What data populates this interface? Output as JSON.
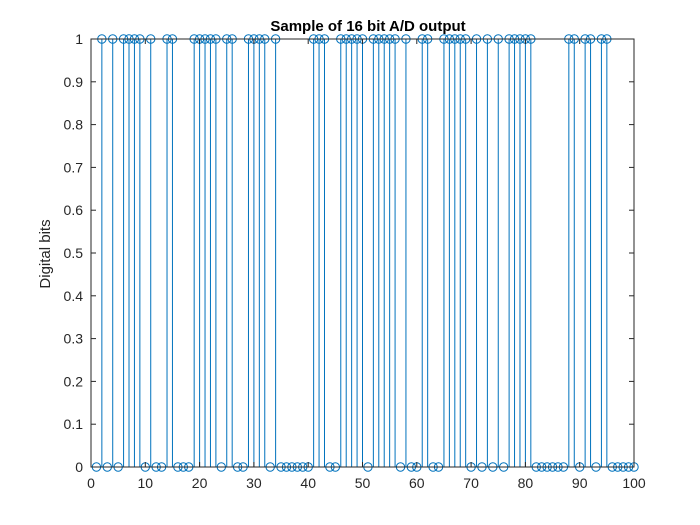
{
  "chart_data": {
    "type": "stem",
    "title": "Sample of 16 bit A/D output",
    "xlabel": "",
    "ylabel": "Digital bits",
    "xlim": [
      0,
      100
    ],
    "ylim": [
      0,
      1
    ],
    "xticks": [
      "0",
      "10",
      "20",
      "30",
      "40",
      "50",
      "60",
      "70",
      "80",
      "90",
      "100"
    ],
    "yticks": [
      "0",
      "0.1",
      "0.2",
      "0.3",
      "0.4",
      "0.5",
      "0.6",
      "0.7",
      "0.8",
      "0.9",
      "1"
    ],
    "grid": false,
    "color": "#0072BD",
    "x": [
      1,
      2,
      3,
      4,
      5,
      6,
      7,
      8,
      9,
      10,
      11,
      12,
      13,
      14,
      15,
      16,
      17,
      18,
      19,
      20,
      21,
      22,
      23,
      24,
      25,
      26,
      27,
      28,
      29,
      30,
      31,
      32,
      33,
      34,
      35,
      36,
      37,
      38,
      39,
      40,
      41,
      42,
      43,
      44,
      45,
      46,
      47,
      48,
      49,
      50,
      51,
      52,
      53,
      54,
      55,
      56,
      57,
      58,
      59,
      60,
      61,
      62,
      63,
      64,
      65,
      66,
      67,
      68,
      69,
      70,
      71,
      72,
      73,
      74,
      75,
      76,
      77,
      78,
      79,
      80,
      81,
      82,
      83,
      84,
      85,
      86,
      87,
      88,
      89,
      90,
      91,
      92,
      93,
      94,
      95,
      96,
      97,
      98,
      99,
      100
    ],
    "values": [
      0,
      1,
      0,
      1,
      0,
      1,
      1,
      1,
      1,
      0,
      1,
      0,
      0,
      1,
      1,
      0,
      0,
      0,
      1,
      1,
      1,
      1,
      1,
      0,
      1,
      1,
      0,
      0,
      1,
      1,
      1,
      1,
      0,
      1,
      0,
      0,
      0,
      0,
      0,
      0,
      1,
      1,
      1,
      0,
      0,
      1,
      1,
      1,
      1,
      1,
      0,
      1,
      1,
      1,
      1,
      1,
      0,
      1,
      0,
      0,
      1,
      1,
      0,
      0,
      1,
      1,
      1,
      1,
      1,
      0,
      1,
      0,
      1,
      0,
      1,
      0,
      1,
      1,
      1,
      1,
      1,
      0,
      0,
      0,
      0,
      0,
      0,
      1,
      1,
      0,
      1,
      1,
      0,
      1,
      1,
      0,
      0,
      0,
      0,
      0
    ]
  }
}
